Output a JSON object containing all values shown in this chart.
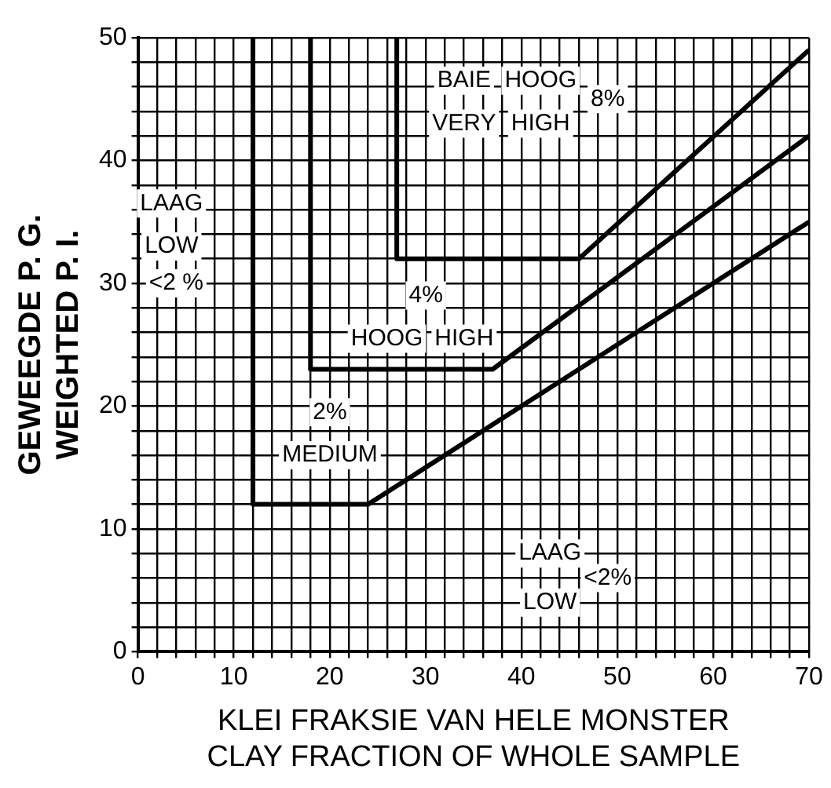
{
  "chart_data": {
    "type": "line",
    "xlabel": "KLEI FRAKSIE VAN HELE MONSTER\nCLAY FRACTION OF WHOLE SAMPLE",
    "ylabel": "GEWEEGDE P. G.\nWEIGHTED P. I.",
    "series": [
      {
        "color": "#000000",
        "x": [
          12,
          12,
          24,
          70
        ],
        "values": [
          50,
          12,
          12,
          35
        ]
      },
      {
        "color": "#000000",
        "x": [
          18,
          18,
          37,
          70
        ],
        "values": [
          50,
          23,
          23,
          42
        ]
      },
      {
        "color": "#000000",
        "x": [
          27,
          27,
          46,
          70
        ],
        "values": [
          50,
          32,
          32,
          49
        ]
      }
    ],
    "xlim": [
      0,
      70
    ],
    "ylim": [
      0,
      50
    ],
    "xticks": [
      0,
      {
        "value": 2,
        "label": null
      },
      {
        "value": 4,
        "label": null
      },
      {
        "value": 6,
        "label": null
      },
      {
        "value": 8,
        "label": null
      },
      10,
      {
        "value": 12,
        "label": null
      },
      {
        "value": 14,
        "label": null
      },
      {
        "value": 16,
        "label": null
      },
      {
        "value": 18,
        "label": null
      },
      20,
      {
        "value": 22,
        "label": null
      },
      {
        "value": 24,
        "label": null
      },
      {
        "value": 26,
        "label": null
      },
      {
        "value": 28,
        "label": null
      },
      30,
      {
        "value": 32,
        "label": null
      },
      {
        "value": 34,
        "label": null
      },
      {
        "value": 36,
        "label": null
      },
      {
        "value": 38,
        "label": null
      },
      40,
      {
        "value": 42,
        "label": null
      },
      {
        "value": 44,
        "label": null
      },
      {
        "value": 46,
        "label": null
      },
      {
        "value": 48,
        "label": null
      },
      50,
      {
        "value": 52,
        "label": null
      },
      {
        "value": 54,
        "label": null
      },
      {
        "value": 56,
        "label": null
      },
      {
        "value": 58,
        "label": null
      },
      60,
      {
        "value": 62,
        "label": null
      },
      {
        "value": 64,
        "label": null
      },
      {
        "value": 66,
        "label": null
      },
      {
        "value": 68,
        "label": null
      },
      70
    ],
    "yticks": [
      0,
      {
        "value": 2,
        "label": null
      },
      {
        "value": 4,
        "label": null
      },
      {
        "value": 6,
        "label": null
      },
      {
        "value": 8,
        "label": null
      },
      10,
      {
        "value": 12,
        "label": null
      },
      {
        "value": 14,
        "label": null
      },
      {
        "value": 16,
        "label": null
      },
      {
        "value": 18,
        "label": null
      },
      20,
      {
        "value": 22,
        "label": null
      },
      {
        "value": 24,
        "label": null
      },
      {
        "value": 26,
        "label": null
      },
      {
        "value": 28,
        "label": null
      },
      30,
      {
        "value": 32,
        "label": null
      },
      {
        "value": 34,
        "label": null
      },
      {
        "value": 36,
        "label": null
      },
      {
        "value": 38,
        "label": null
      },
      40,
      {
        "value": 42,
        "label": null
      },
      {
        "value": 44,
        "label": null
      },
      {
        "value": 46,
        "label": null
      },
      {
        "value": 48,
        "label": null
      },
      50
    ],
    "grid": true,
    "legend": false,
    "marker": "none",
    "line_style": "solid",
    "annotations": [
      "LAAG",
      "LOW",
      "<2 %",
      "2%",
      "MEDIUM",
      "4%",
      "HOOG",
      "HIGH",
      "BAIE",
      "HOOG",
      "8%",
      "VERY",
      "HIGH",
      "LAAG",
      "LOW",
      "<2%"
    ]
  }
}
